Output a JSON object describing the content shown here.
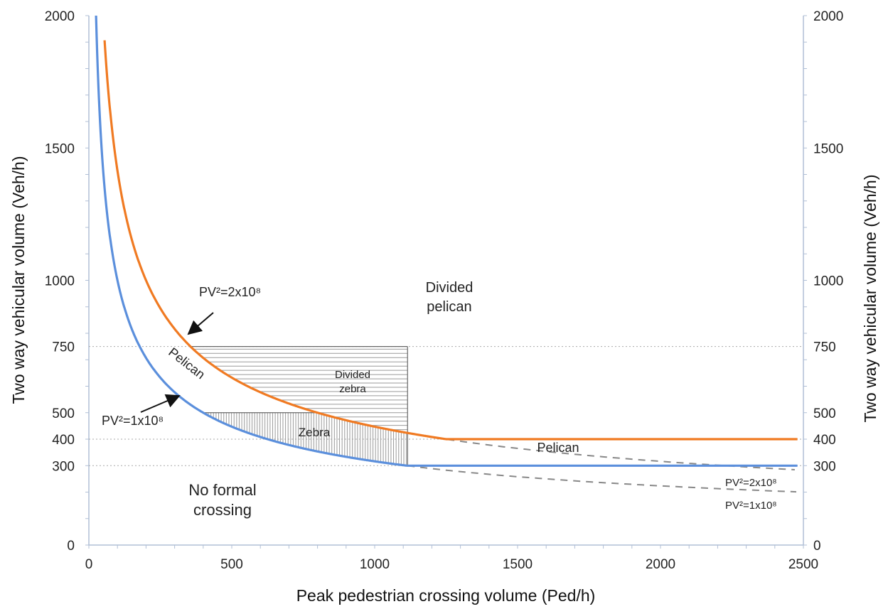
{
  "chart_data": {
    "type": "line",
    "xlabel": "Peak pedestrian crossing volume (Ped/h)",
    "ylabel": "Two way vehicular volume (Veh/h)",
    "ylabel_right": "Two way vehicular volume (Veh/h)",
    "xlim": [
      0,
      2500
    ],
    "ylim": [
      0,
      2000
    ],
    "x_ticks": [
      "0",
      "500",
      "1000",
      "1500",
      "2000",
      "2500"
    ],
    "x_tick_values": [
      0,
      500,
      1000,
      1500,
      2000,
      2500
    ],
    "y_ticks": [
      "0",
      "300",
      "400",
      "500",
      "750",
      "1000",
      "1500",
      "2000"
    ],
    "y_tick_values": [
      0,
      300,
      400,
      500,
      750,
      1000,
      1500,
      2000
    ],
    "y_ticks_right": [
      "0",
      "300",
      "400",
      "500",
      "750",
      "1000",
      "1500",
      "2000"
    ],
    "grid": false,
    "reference_lines_y": [
      300,
      400,
      750
    ],
    "series": [
      {
        "key": "pv2_2e8",
        "color": "#f07a22",
        "constant": 200000000,
        "floor": 400,
        "x_start": 55,
        "x_end": 2480
      },
      {
        "key": "pv2_1e8",
        "color": "#5b8fdc",
        "constant": 100000000,
        "floor": 300,
        "x_start": 25,
        "x_end": 2480
      }
    ],
    "dashed_extensions": [
      {
        "constant": 200000000,
        "x_start": 1210,
        "x_end": 2480,
        "color": "#888888"
      },
      {
        "constant": 100000000,
        "x_start": 1115,
        "x_end": 2480,
        "color": "#888888"
      }
    ],
    "regions": {
      "divided_zebra": {
        "x": [
          350,
          1115
        ],
        "y": [
          500,
          750
        ],
        "hatch": "horizontal"
      },
      "zebra": {
        "x": [
          400,
          1115
        ],
        "y": [
          300,
          500
        ],
        "hatch": "vertical"
      }
    }
  },
  "labels": {
    "divided_pelican_1": "Divided",
    "divided_pelican_2": "pelican",
    "divided_zebra_1": "Divided",
    "divided_zebra_2": "zebra",
    "zebra": "Zebra",
    "pelican_diag": "Pelican",
    "pelican_right": "Pelican",
    "no_formal_1": "No formal",
    "no_formal_2": "crossing",
    "anno_pv_2e8": "PV²=2x10⁸",
    "anno_pv_1e8": "PV²=1x10⁸",
    "anno_pv_2e8_right": "PV²=2x10⁸",
    "anno_pv_1e8_right": "PV²=1x10⁸"
  },
  "colors": {
    "orange": "#f07a22",
    "blue": "#5b8fdc",
    "axis": "#b0bfd6",
    "dashed": "#888888",
    "hatch": "#9a9a9a"
  }
}
